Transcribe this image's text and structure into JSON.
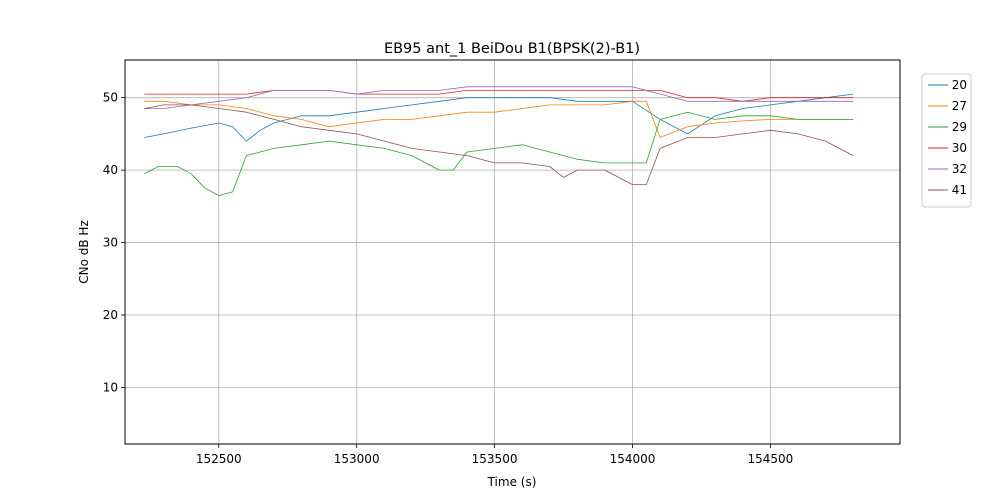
{
  "chart_data": {
    "type": "line",
    "title": "EB95 ant_1 BeiDou B1(BPSK(2)-B1)",
    "xlabel": "Time (s)",
    "ylabel": "CNo dB Hz",
    "xlim": [
      152160,
      154970
    ],
    "ylim": [
      2.2,
      55.2
    ],
    "xticks": [
      152500,
      153000,
      153500,
      154000,
      154500
    ],
    "yticks": [
      10,
      20,
      30,
      40,
      50
    ],
    "grid": true,
    "legend_position": "outside-right-top",
    "series": [
      {
        "name": "20",
        "color": "#1f77b4",
        "x": [
          152230,
          152300,
          152400,
          152500,
          152550,
          152600,
          152650,
          152700,
          152750,
          152800,
          152900,
          153000,
          153100,
          153200,
          153300,
          153400,
          153500,
          153600,
          153700,
          153800,
          153900,
          154000,
          154100,
          154200,
          154300,
          154400,
          154500,
          154600,
          154700,
          154800
        ],
        "y": [
          44.5,
          45.0,
          45.8,
          46.5,
          46.0,
          44.0,
          45.5,
          46.5,
          47.0,
          47.5,
          47.5,
          48.0,
          48.5,
          49.0,
          49.5,
          50.0,
          50.0,
          50.0,
          50.0,
          49.5,
          49.5,
          49.5,
          47.0,
          45.0,
          47.5,
          48.5,
          49.0,
          49.5,
          50.0,
          50.5
        ]
      },
      {
        "name": "27",
        "color": "#ff7f0e",
        "x": [
          152230,
          152300,
          152400,
          152500,
          152600,
          152700,
          152800,
          152900,
          153000,
          153100,
          153200,
          153300,
          153400,
          153500,
          153600,
          153700,
          153800,
          153900,
          154000,
          154050,
          154100,
          154200,
          154300,
          154400,
          154500,
          154600,
          154700,
          154800
        ],
        "y": [
          49.5,
          49.5,
          49.0,
          49.0,
          48.5,
          47.5,
          47.0,
          46.0,
          46.5,
          47.0,
          47.0,
          47.5,
          48.0,
          48.0,
          48.5,
          49.0,
          49.0,
          49.0,
          49.5,
          49.5,
          44.5,
          46.0,
          46.5,
          46.8,
          47.0,
          47.0,
          47.0,
          47.0
        ]
      },
      {
        "name": "29",
        "color": "#2ca02c",
        "x": [
          152230,
          152280,
          152350,
          152400,
          152450,
          152500,
          152550,
          152600,
          152700,
          152800,
          152900,
          153000,
          153100,
          153200,
          153300,
          153350,
          153400,
          153500,
          153600,
          153700,
          153800,
          153900,
          154000,
          154050,
          154100,
          154200,
          154300,
          154400,
          154500,
          154600,
          154700,
          154800
        ],
        "y": [
          39.5,
          40.5,
          40.5,
          39.5,
          37.5,
          36.5,
          37.0,
          42.0,
          43.0,
          43.5,
          44.0,
          43.5,
          43.0,
          42.0,
          40.0,
          40.0,
          42.5,
          43.0,
          43.5,
          42.5,
          41.5,
          41.0,
          41.0,
          41.0,
          47.0,
          48.0,
          47.0,
          47.5,
          47.5,
          47.0,
          47.0,
          47.0
        ]
      },
      {
        "name": "30",
        "color": "#d62728",
        "x": [
          152230,
          152300,
          152400,
          152500,
          152600,
          152700,
          152800,
          152900,
          153000,
          153100,
          153200,
          153300,
          153400,
          153500,
          153600,
          153700,
          153800,
          153900,
          154000,
          154100,
          154200,
          154300,
          154400,
          154500,
          154600,
          154700,
          154800
        ],
        "y": [
          50.5,
          50.5,
          50.5,
          50.5,
          50.5,
          51.0,
          51.0,
          51.0,
          50.5,
          50.5,
          50.5,
          50.5,
          51.0,
          51.0,
          51.0,
          51.0,
          51.0,
          51.0,
          51.0,
          51.0,
          50.0,
          50.0,
          49.5,
          50.0,
          50.0,
          50.0,
          50.0
        ]
      },
      {
        "name": "32",
        "color": "#9467bd",
        "x": [
          152230,
          152300,
          152400,
          152500,
          152600,
          152700,
          152800,
          152900,
          153000,
          153100,
          153200,
          153300,
          153400,
          153500,
          153600,
          153700,
          153800,
          153900,
          154000,
          154100,
          154200,
          154300,
          154400,
          154500,
          154600,
          154700,
          154800
        ],
        "y": [
          48.5,
          48.5,
          49.0,
          49.5,
          50.0,
          51.0,
          51.0,
          51.0,
          50.5,
          51.0,
          51.0,
          51.0,
          51.5,
          51.5,
          51.5,
          51.5,
          51.5,
          51.5,
          51.5,
          50.5,
          49.5,
          49.5,
          49.5,
          49.5,
          49.5,
          49.5,
          49.5
        ]
      },
      {
        "name": "41",
        "color": "#8c564b",
        "x": [
          152230,
          152300,
          152400,
          152500,
          152600,
          152700,
          152800,
          152900,
          153000,
          153100,
          153200,
          153300,
          153400,
          153500,
          153600,
          153700,
          153750,
          153800,
          153900,
          154000,
          154050,
          154100,
          154200,
          154300,
          154400,
          154500,
          154600,
          154700,
          154800
        ],
        "y": [
          48.5,
          49.0,
          49.0,
          48.5,
          48.0,
          47.0,
          46.0,
          45.5,
          45.0,
          44.0,
          43.0,
          42.5,
          42.0,
          41.0,
          41.0,
          40.5,
          39.0,
          40.0,
          40.0,
          38.0,
          38.0,
          43.0,
          44.5,
          44.5,
          45.0,
          45.5,
          45.0,
          44.0,
          42.0
        ]
      }
    ]
  }
}
